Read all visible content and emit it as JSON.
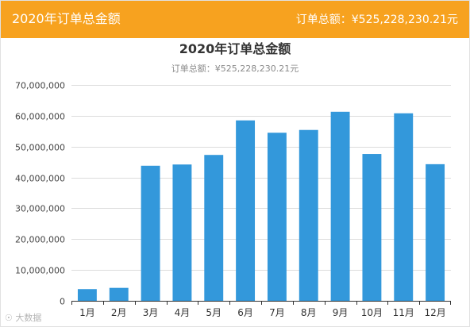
{
  "header": {
    "title": "2020年订单总金额",
    "total": "订单总额：¥525,228,230.21元"
  },
  "watermark": "大数据",
  "chart_data": {
    "type": "bar",
    "title": "2020年订单总金额",
    "subtitle": "订单总额：¥525,228,230.21元",
    "xlabel": "",
    "ylabel": "",
    "categories": [
      "1月",
      "2月",
      "3月",
      "4月",
      "5月",
      "6月",
      "7月",
      "8月",
      "9月",
      "10月",
      "11月",
      "12月"
    ],
    "values": [
      3800000,
      4200000,
      43800000,
      44200000,
      47300000,
      58500000,
      54500000,
      55400000,
      61300000,
      47600000,
      60800000,
      44300000
    ],
    "ylim": [
      0,
      70000000
    ],
    "yticks": [
      0,
      10000000,
      20000000,
      30000000,
      40000000,
      50000000,
      60000000,
      70000000
    ],
    "ytick_labels": [
      "0",
      "10,000,000",
      "20,000,000",
      "30,000,000",
      "40,000,000",
      "50,000,000",
      "60,000,000",
      "70,000,000"
    ],
    "grid": true,
    "bar_color": "#3398db",
    "header_color": "#f7a21f"
  }
}
